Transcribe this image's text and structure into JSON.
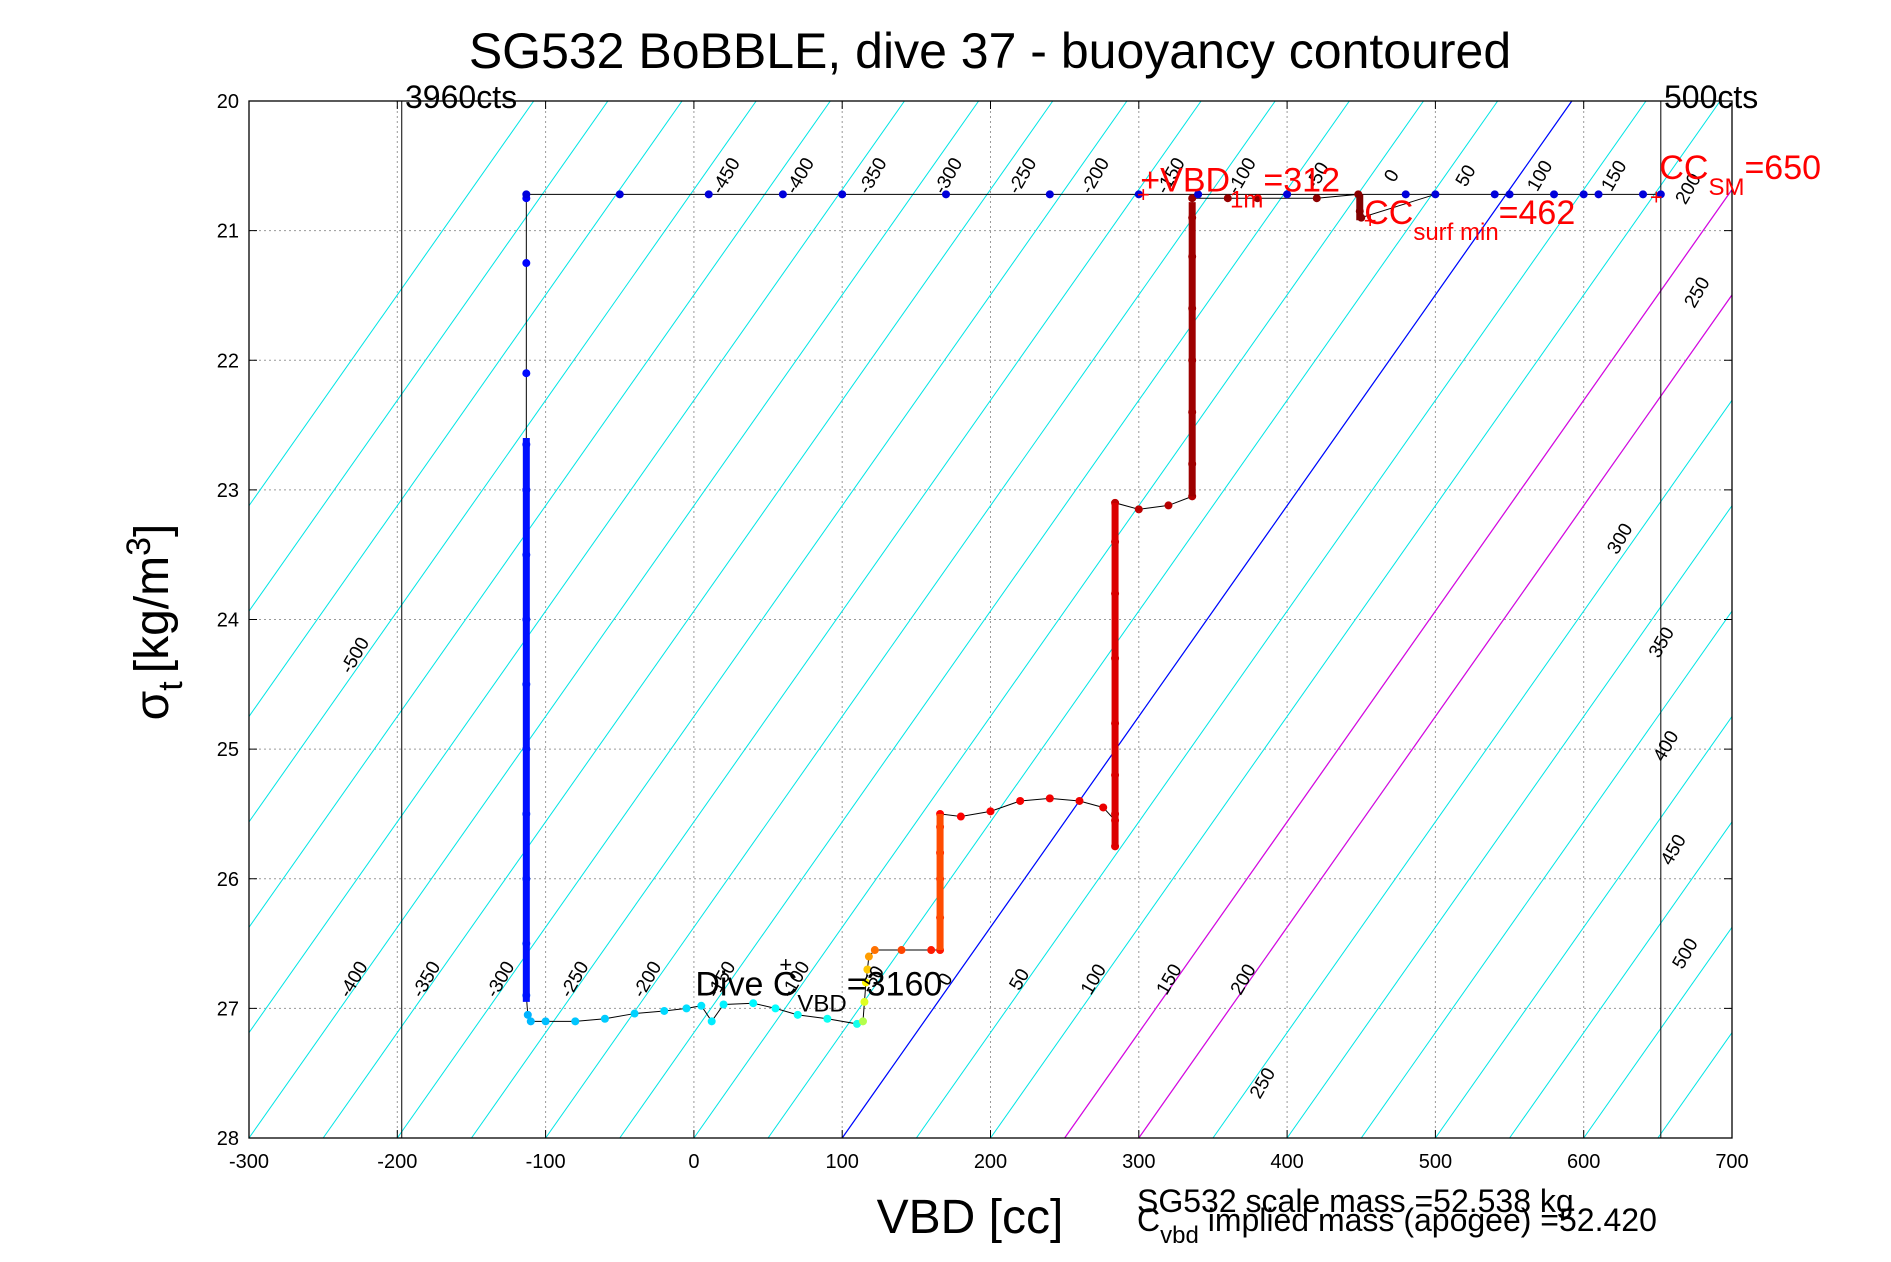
{
  "chart_data": {
    "type": "scatter",
    "title": "SG532 BoBBLE, dive 37 - buoyancy contoured",
    "xlabel": "VBD [cc]",
    "ylabel_main": "σ",
    "ylabel_sub": "t",
    "ylabel_unit": "[kg/m",
    "ylabel_sup": "3",
    "ylabel_close": "]",
    "xlim": [
      -300,
      700
    ],
    "ylim": [
      20,
      28
    ],
    "y_reversed": true,
    "grid": true,
    "x_ticks": [
      "-300",
      "-200",
      "-100",
      "0",
      "100",
      "200",
      "300",
      "400",
      "500",
      "600",
      "700"
    ],
    "y_ticks": [
      "20",
      "21",
      "22",
      "23",
      "24",
      "25",
      "26",
      "27",
      "28"
    ],
    "vline_left": {
      "x": -197,
      "label": "3960cts"
    },
    "vline_right": {
      "x": 652,
      "label": "500cts"
    },
    "contour_levels_cyan": [
      -500,
      -450,
      -400,
      -350,
      -300,
      -250,
      -200,
      -150,
      -100,
      -50,
      0,
      50,
      100,
      150,
      200,
      250,
      300,
      350,
      400,
      450,
      500
    ],
    "contour_levels_magenta": [
      150,
      200
    ],
    "contour_level_blue": 0,
    "contour_labels": [
      {
        "x": -225,
        "y": 24.3,
        "text": "-500"
      },
      {
        "x": -226,
        "y": 26.8,
        "text": "-400"
      },
      {
        "x": -177,
        "y": 26.8,
        "text": "-350"
      },
      {
        "x": -127,
        "y": 26.8,
        "text": "-300"
      },
      {
        "x": -77,
        "y": 26.8,
        "text": "-250"
      },
      {
        "x": -28,
        "y": 26.8,
        "text": "-200"
      },
      {
        "x": 22,
        "y": 26.8,
        "text": "-150"
      },
      {
        "x": 72,
        "y": 26.8,
        "text": "-100"
      },
      {
        "x": 124,
        "y": 26.8,
        "text": "-50"
      },
      {
        "x": 173,
        "y": 26.8,
        "text": "0"
      },
      {
        "x": 223,
        "y": 26.8,
        "text": "50"
      },
      {
        "x": 273,
        "y": 26.8,
        "text": "100"
      },
      {
        "x": 324,
        "y": 26.8,
        "text": "150"
      },
      {
        "x": 374,
        "y": 26.8,
        "text": "200"
      },
      {
        "x": 387,
        "y": 27.6,
        "text": "250"
      },
      {
        "x": 25,
        "y": 20.6,
        "text": "-450"
      },
      {
        "x": 75,
        "y": 20.6,
        "text": "-400"
      },
      {
        "x": 124,
        "y": 20.6,
        "text": "-350"
      },
      {
        "x": 175,
        "y": 20.6,
        "text": "-300"
      },
      {
        "x": 225,
        "y": 20.6,
        "text": "-250"
      },
      {
        "x": 274,
        "y": 20.6,
        "text": "-200"
      },
      {
        "x": 325,
        "y": 20.6,
        "text": "-150"
      },
      {
        "x": 373,
        "y": 20.6,
        "text": "-100"
      },
      {
        "x": 424,
        "y": 20.6,
        "text": "-50"
      },
      {
        "x": 474,
        "y": 20.6,
        "text": "0"
      },
      {
        "x": 524,
        "y": 20.6,
        "text": "50"
      },
      {
        "x": 574,
        "y": 20.6,
        "text": "100"
      },
      {
        "x": 624,
        "y": 20.6,
        "text": "150"
      },
      {
        "x": 674,
        "y": 20.7,
        "text": "200"
      },
      {
        "x": 680,
        "y": 21.5,
        "text": "250"
      },
      {
        "x": 628,
        "y": 23.4,
        "text": "300"
      },
      {
        "x": 656,
        "y": 24.2,
        "text": "350"
      },
      {
        "x": 659,
        "y": 25.0,
        "text": "400"
      },
      {
        "x": 664,
        "y": 25.8,
        "text": "450"
      },
      {
        "x": 672,
        "y": 26.6,
        "text": "500"
      }
    ],
    "series": [
      {
        "points": [
          [
            -113,
            20.75
          ],
          [
            -113,
            21.25
          ],
          [
            -113,
            22.1
          ],
          [
            -113,
            22.65
          ],
          [
            -113,
            23.0
          ],
          [
            -113,
            23.5
          ],
          [
            -113,
            24.0
          ],
          [
            -113,
            24.5
          ],
          [
            -113,
            25.0
          ],
          [
            -113,
            25.5
          ],
          [
            -113,
            26.0
          ],
          [
            -113,
            26.5
          ],
          [
            -113,
            26.9
          ],
          [
            -112,
            27.05
          ],
          [
            -110,
            27.1
          ],
          [
            -100,
            27.1
          ],
          [
            -80,
            27.1
          ],
          [
            -60,
            27.08
          ],
          [
            -40,
            27.04
          ],
          [
            -20,
            27.02
          ],
          [
            -5,
            27.0
          ],
          [
            5,
            26.98
          ],
          [
            12,
            27.1
          ],
          [
            20,
            26.97
          ],
          [
            40,
            26.96
          ],
          [
            55,
            27.0
          ],
          [
            70,
            27.05
          ],
          [
            90,
            27.08
          ],
          [
            110,
            27.12
          ],
          [
            114,
            27.1
          ],
          [
            115,
            26.95
          ],
          [
            116,
            26.8
          ],
          [
            117,
            26.7
          ],
          [
            118,
            26.6
          ],
          [
            122,
            26.55
          ],
          [
            140,
            26.55
          ],
          [
            160,
            26.55
          ],
          [
            166,
            26.55
          ],
          [
            166,
            26.3
          ],
          [
            166,
            26.0
          ],
          [
            166,
            25.8
          ],
          [
            166,
            25.6
          ],
          [
            166,
            25.5
          ],
          [
            180,
            25.52
          ],
          [
            200,
            25.48
          ],
          [
            220,
            25.4
          ],
          [
            240,
            25.38
          ],
          [
            260,
            25.4
          ],
          [
            276,
            25.45
          ],
          [
            284,
            25.55
          ],
          [
            284,
            25.75
          ],
          [
            284,
            25.5
          ],
          [
            284,
            25.2
          ],
          [
            284,
            24.8
          ],
          [
            284,
            24.3
          ],
          [
            284,
            23.8
          ],
          [
            284,
            23.4
          ],
          [
            284,
            23.1
          ],
          [
            300,
            23.15
          ],
          [
            320,
            23.12
          ],
          [
            336,
            23.05
          ],
          [
            336,
            22.8
          ],
          [
            336,
            22.4
          ],
          [
            336,
            22.0
          ],
          [
            336,
            21.6
          ],
          [
            336,
            21.2
          ],
          [
            336,
            20.9
          ],
          [
            336,
            20.75
          ],
          [
            360,
            20.75
          ],
          [
            380,
            20.75
          ],
          [
            420,
            20.75
          ],
          [
            448,
            20.72
          ],
          [
            449,
            20.85
          ],
          [
            450,
            20.9
          ],
          [
            500,
            20.72
          ],
          [
            540,
            20.72
          ],
          [
            580,
            20.72
          ],
          [
            610,
            20.72
          ],
          [
            652,
            20.72
          ],
          [
            640,
            20.72
          ],
          [
            600,
            20.72
          ],
          [
            550,
            20.72
          ],
          [
            480,
            20.72
          ],
          [
            400,
            20.72
          ],
          [
            340,
            20.72
          ],
          [
            300,
            20.72
          ],
          [
            240,
            20.72
          ],
          [
            170,
            20.72
          ],
          [
            100,
            20.72
          ],
          [
            60,
            20.72
          ],
          [
            10,
            20.72
          ],
          [
            -50,
            20.72
          ],
          [
            -113,
            20.72
          ]
        ]
      }
    ],
    "annotations": [
      {
        "x": 301,
        "y": 20.7,
        "main": "+VBD",
        "sub": "1m",
        "tail": "=312",
        "color": "#ff0000"
      },
      {
        "x": 452,
        "y": 20.95,
        "main": "CC",
        "sub": "surf min",
        "tail": "=462",
        "color": "#ff0000"
      },
      {
        "x": 651,
        "y": 20.6,
        "main": "CC",
        "sub": "SM",
        "tail": "=650",
        "color": "#ff0000"
      },
      {
        "x": 1,
        "y": 26.9,
        "main": "Dive C",
        "sub": "VBD",
        "tail": "=3160",
        "color": "#000000"
      }
    ],
    "marks": [
      {
        "x": 303,
        "y": 20.78,
        "text": "+",
        "color": "#ff0000"
      },
      {
        "x": 649,
        "y": 20.8,
        "text": "+",
        "color": "#ff0000"
      },
      {
        "x": 456,
        "y": 20.98,
        "text": "+",
        "color": "#ff0000"
      },
      {
        "x": 62,
        "y": 26.72,
        "text": "+",
        "color": "#000000"
      }
    ],
    "footer": [
      {
        "text": "SG532 scale mass =52.538 kg",
        "color": "#000000"
      },
      {
        "main": "C",
        "sub": "vbd",
        "tail": " implied mass (apogee) =52.420",
        "color": "#000000"
      }
    ]
  }
}
